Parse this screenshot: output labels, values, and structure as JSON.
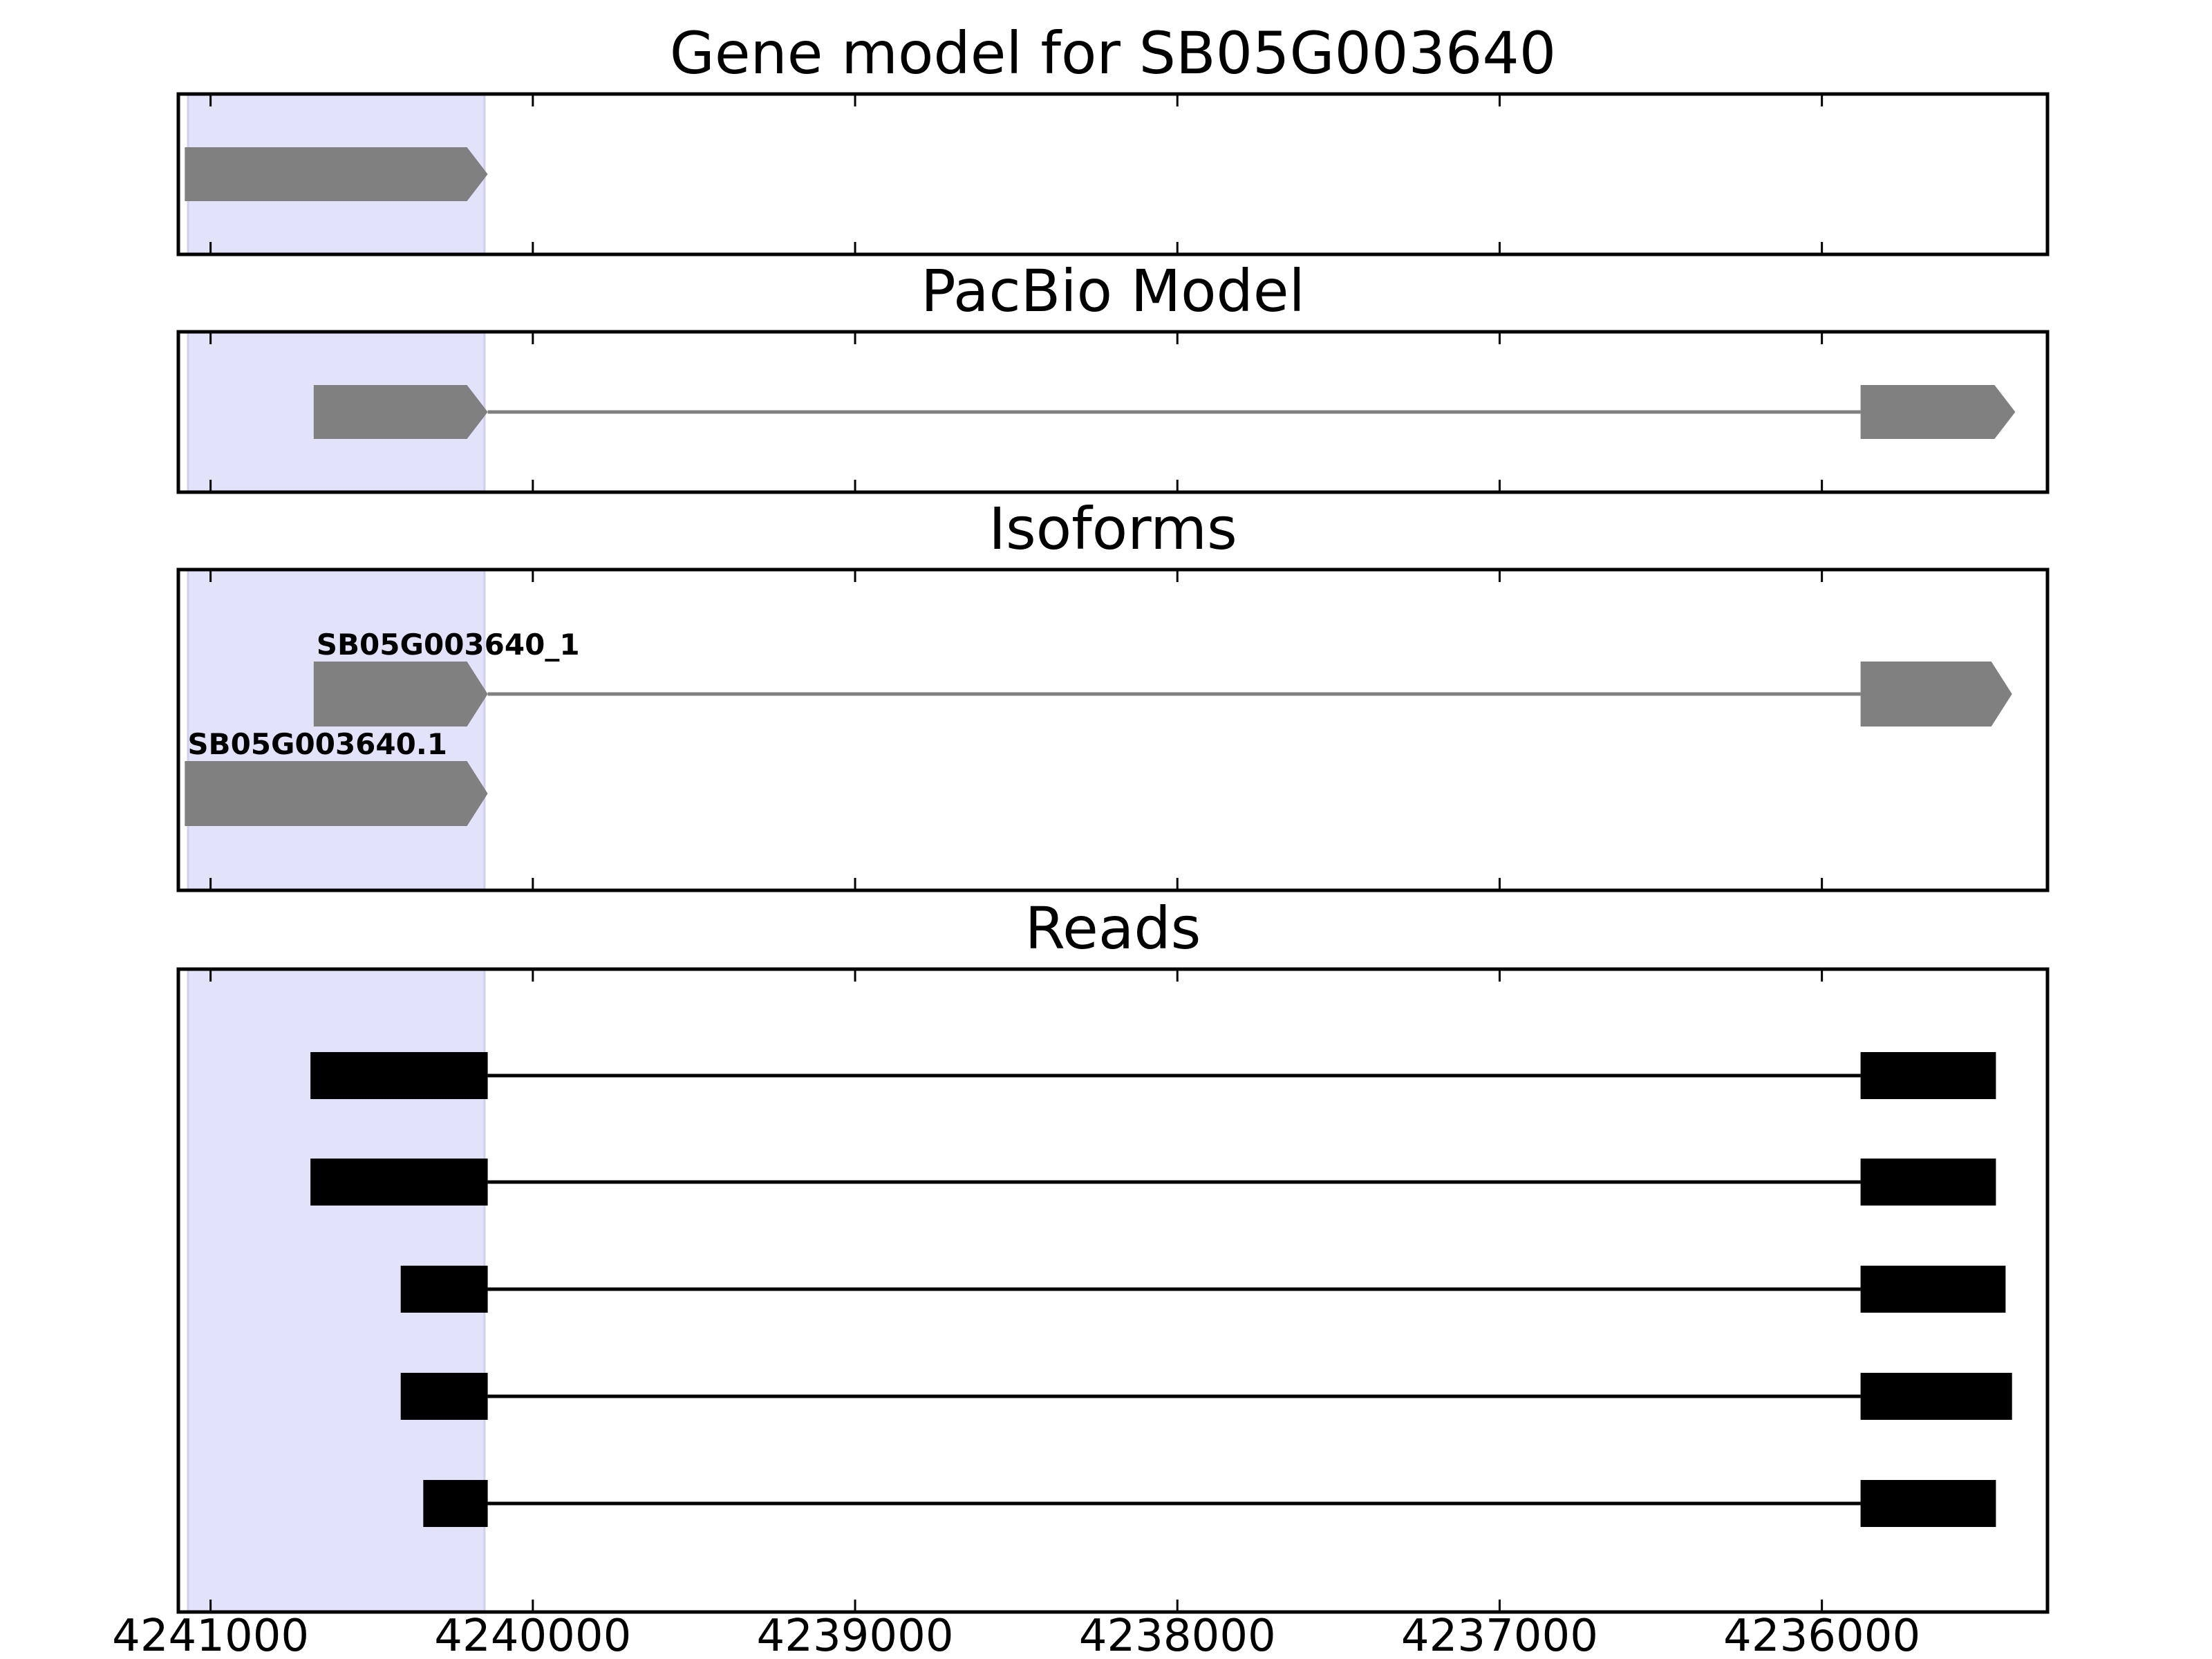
{
  "chart_data": {
    "type": "gene-track",
    "x_axis": {
      "range": [
        4241100,
        4235300
      ],
      "reversed": true,
      "ticks": [
        4241000,
        4240000,
        4239000,
        4238000,
        4237000,
        4236000
      ],
      "tick_labels": [
        "4241000",
        "4240000",
        "4239000",
        "4238000",
        "4237000",
        "4236000"
      ]
    },
    "highlight_region": [
      4241070,
      4240150
    ],
    "colors": {
      "highlight": "#e2e2fb",
      "model_feature": "#808080",
      "read_feature": "#000000",
      "frame": "#000000"
    },
    "panels": [
      {
        "title": "Gene model for SB05G003640",
        "features": [
          {
            "label": "",
            "exons": [
              [
                4241080,
                4240140
              ]
            ],
            "arrow": true
          }
        ]
      },
      {
        "title": "PacBio Model",
        "features": [
          {
            "label": "",
            "exons": [
              [
                4240680,
                4240140
              ],
              [
                4235880,
                4235400
              ]
            ],
            "arrow": true
          }
        ]
      },
      {
        "title": "Isoforms",
        "features": [
          {
            "label": "SB05G003640_1",
            "exons": [
              [
                4240680,
                4240140
              ],
              [
                4235880,
                4235410
              ]
            ],
            "arrow": true
          },
          {
            "label": "SB05G003640.1",
            "exons": [
              [
                4241080,
                4240140
              ]
            ],
            "arrow": true
          }
        ]
      },
      {
        "title": "Reads",
        "features": [
          {
            "label": "",
            "exons": [
              [
                4240690,
                4240140
              ],
              [
                4235880,
                4235460
              ]
            ],
            "arrow": false
          },
          {
            "label": "",
            "exons": [
              [
                4240690,
                4240140
              ],
              [
                4235880,
                4235460
              ]
            ],
            "arrow": false
          },
          {
            "label": "",
            "exons": [
              [
                4240410,
                4240140
              ],
              [
                4235880,
                4235430
              ]
            ],
            "arrow": false
          },
          {
            "label": "",
            "exons": [
              [
                4240410,
                4240140
              ],
              [
                4235880,
                4235410
              ]
            ],
            "arrow": false
          },
          {
            "label": "",
            "exons": [
              [
                4240340,
                4240140
              ],
              [
                4235880,
                4235460
              ]
            ],
            "arrow": false
          }
        ]
      }
    ]
  }
}
